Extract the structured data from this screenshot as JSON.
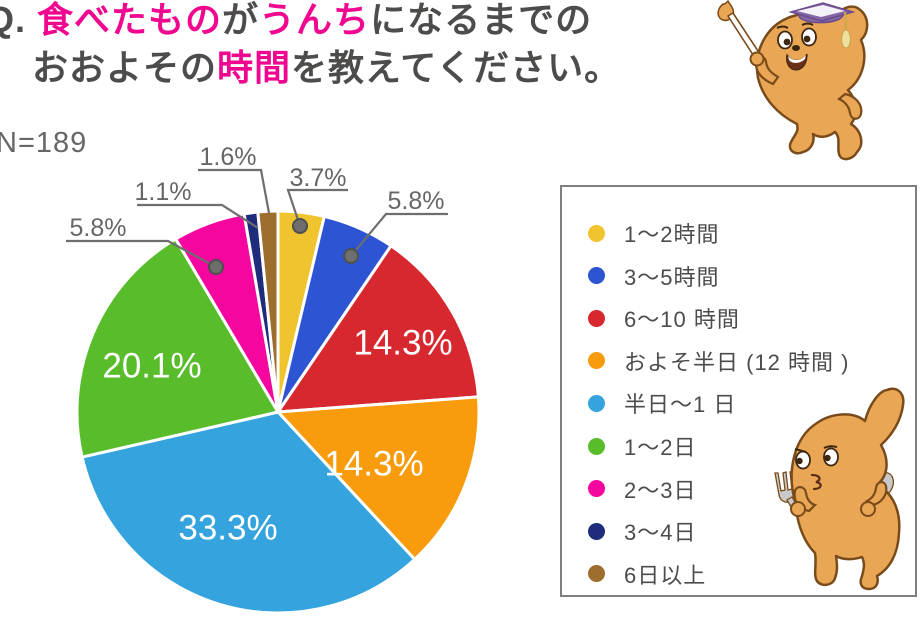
{
  "title": {
    "line1_segments": [
      {
        "text": "Q. ",
        "highlight": false
      },
      {
        "text": "食べたもの",
        "highlight": true
      },
      {
        "text": "が",
        "highlight": false
      },
      {
        "text": "うんち",
        "highlight": true
      },
      {
        "text": "になるまでの",
        "highlight": false
      }
    ],
    "line2_segments": [
      {
        "text": "おおよその",
        "highlight": false
      },
      {
        "text": "時間",
        "highlight": true
      },
      {
        "text": "を教えてください。",
        "highlight": false
      }
    ],
    "text_color": "#4E4B4B",
    "highlight_color": "#F0078F"
  },
  "sample_size": {
    "label": "N=189"
  },
  "chart_data": {
    "type": "pie",
    "title": "食べたものがうんちになるまでのおおよその時間",
    "sample_size": 189,
    "start_angle_deg": 0,
    "direction": "clockwise",
    "legend_position": "right",
    "slices": [
      {
        "label": "1～2時間",
        "value": 3.7,
        "percent_label": "3.7%",
        "color": "#F0C42E",
        "label_style": "callout"
      },
      {
        "label": "3～5時間",
        "value": 5.8,
        "percent_label": "5.8%",
        "color": "#2D55D3",
        "label_style": "callout"
      },
      {
        "label": "6～10 時間",
        "value": 14.3,
        "percent_label": "14.3%",
        "color": "#D7282F",
        "label_style": "inside"
      },
      {
        "label": "およそ半日 (12 時間 )",
        "value": 14.3,
        "percent_label": "14.3%",
        "color": "#F89C0E",
        "label_style": "inside"
      },
      {
        "label": "半日～1 日",
        "value": 33.3,
        "percent_label": "33.3%",
        "color": "#35A3DD",
        "label_style": "inside"
      },
      {
        "label": "1～2日",
        "value": 20.1,
        "percent_label": "20.1%",
        "color": "#59BD2B",
        "label_style": "inside"
      },
      {
        "label": "2～3日",
        "value": 5.8,
        "percent_label": "5.8%",
        "color": "#F5079F",
        "label_style": "callout"
      },
      {
        "label": "3～4日",
        "value": 1.1,
        "percent_label": "1.1%",
        "color": "#1F2C7C",
        "label_style": "callout"
      },
      {
        "label": "6日以上",
        "value": 1.6,
        "percent_label": "1.6%",
        "color": "#9D6E2E",
        "label_style": "callout"
      }
    ],
    "inside_label_color": "#ffffff",
    "callout_label_color": "#666666",
    "leader_line_color": "#6E6E6E"
  },
  "legend": {
    "border_color": "#7F7F7F",
    "text_color": "#4E4B4B"
  },
  "mascots": {
    "teacher": {
      "body_color": "#E9A654",
      "outline_color": "#7A4B1A",
      "hat_color": "#8465A5",
      "tassel_color": "#EFE0A0"
    },
    "cutlery": {
      "body_color": "#E9A654",
      "outline_color": "#7A4B1A",
      "utensil_color": "#C9C9C9"
    }
  }
}
